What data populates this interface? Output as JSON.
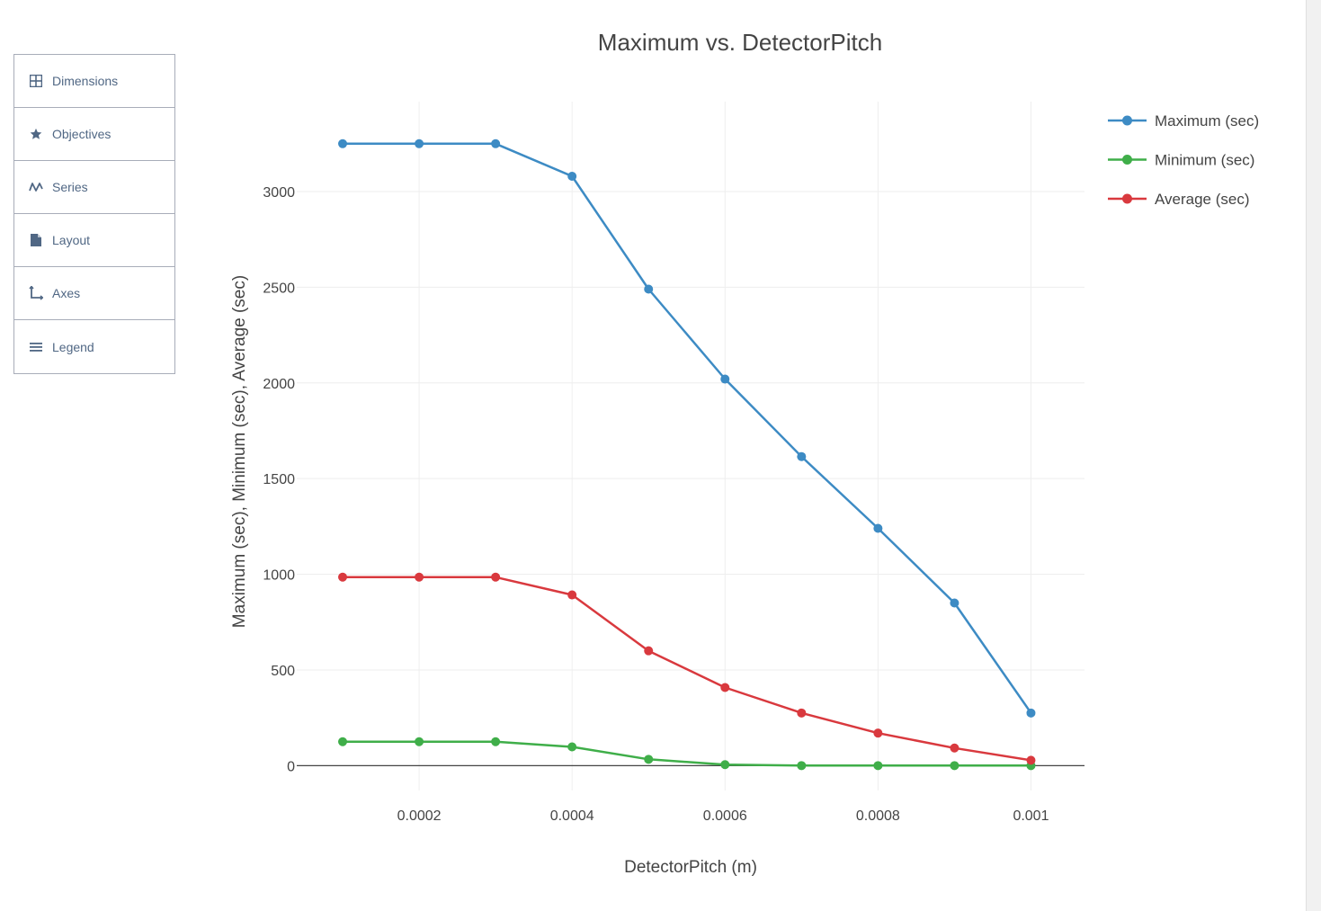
{
  "sidebar": {
    "items": [
      {
        "label": "Dimensions",
        "icon": "grid-icon"
      },
      {
        "label": "Objectives",
        "icon": "star-icon"
      },
      {
        "label": "Series",
        "icon": "wave-icon"
      },
      {
        "label": "Layout",
        "icon": "document-icon"
      },
      {
        "label": "Axes",
        "icon": "axes-icon"
      },
      {
        "label": "Legend",
        "icon": "list-icon"
      }
    ],
    "icon_color": "#506784"
  },
  "chart_data": {
    "type": "line",
    "title": "Maximum vs. DetectorPitch",
    "xlabel": "DetectorPitch (m)",
    "ylabel": "Maximum (sec), Minimum (sec), Average (sec)",
    "xlim": [
      4e-05,
      0.00107
    ],
    "ylim": [
      -130,
      3470
    ],
    "xticks": [
      {
        "value": 0.0002,
        "label": "0.0002"
      },
      {
        "value": 0.0004,
        "label": "0.0004"
      },
      {
        "value": 0.0006,
        "label": "0.0006"
      },
      {
        "value": 0.0008,
        "label": "0.0008"
      },
      {
        "value": 0.001,
        "label": "0.001"
      }
    ],
    "yticks": [
      {
        "value": 0,
        "label": "0"
      },
      {
        "value": 500,
        "label": "500"
      },
      {
        "value": 1000,
        "label": "1000"
      },
      {
        "value": 1500,
        "label": "1500"
      },
      {
        "value": 2000,
        "label": "2000"
      },
      {
        "value": 2500,
        "label": "2500"
      },
      {
        "value": 3000,
        "label": "3000"
      }
    ],
    "grid": true,
    "legend_position": "top-right",
    "x": [
      0.0001,
      0.0002,
      0.0003,
      0.0004,
      0.0005,
      0.0006,
      0.0007,
      0.0008,
      0.0009,
      0.001
    ],
    "series": [
      {
        "name": "Maximum (sec)",
        "color": "#3d8bc4",
        "values": [
          3250,
          3250,
          3250,
          3080,
          2490,
          2020,
          1615,
          1240,
          850,
          275
        ]
      },
      {
        "name": "Minimum (sec)",
        "color": "#3fae49",
        "values": [
          125,
          125,
          125,
          98,
          33,
          5,
          0,
          0,
          0,
          0
        ]
      },
      {
        "name": "Average (sec)",
        "color": "#d9393e",
        "values": [
          985,
          985,
          985,
          892,
          600,
          408,
          275,
          170,
          92,
          28
        ]
      }
    ]
  }
}
